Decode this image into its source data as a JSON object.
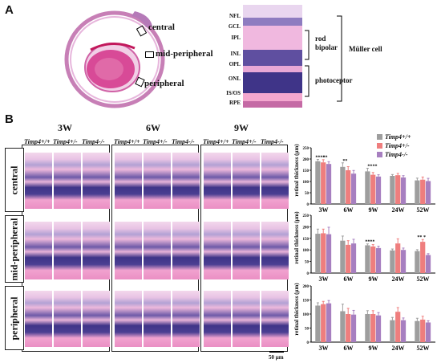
{
  "panel_a": {
    "letter": "A",
    "region_labels": [
      "central",
      "mid-peripheral",
      "peripheral"
    ],
    "layers": [
      "NFL",
      "GCL",
      "IPL",
      "INL",
      "OPL",
      "ONL",
      "IS/OS",
      "RPE"
    ],
    "cell_labels": {
      "rod": "rod",
      "bipolar": "bipolar",
      "photoceptor": "photoceptor",
      "muller": "Müller cell"
    }
  },
  "panel_b": {
    "letter": "B",
    "groups": [
      "3W",
      "6W",
      "9W"
    ],
    "genotypes": [
      "Timp4+/+",
      "Timp4+/-",
      "Timp4-/-"
    ],
    "rows": [
      "central",
      "mid-peripheral",
      "peripheral"
    ],
    "scale_bar": "50 μm"
  },
  "colors": {
    "wt": "#9e9e9e",
    "het": "#ef7e7e",
    "ko": "#a77fc0",
    "he_pink": "#ee9fd0",
    "nuclei": "#4a3f8f"
  },
  "chart_data": [
    {
      "type": "bar",
      "row": "central",
      "categories": [
        "3W",
        "6W",
        "9W",
        "24W",
        "52W"
      ],
      "series": [
        {
          "name": "Timp4+/+",
          "values": [
            190,
            165,
            145,
            125,
            105
          ]
        },
        {
          "name": "Timp4+/-",
          "values": [
            185,
            150,
            130,
            128,
            108
          ]
        },
        {
          "name": "Timp4-/-",
          "values": [
            178,
            135,
            122,
            118,
            102
          ]
        }
      ],
      "errors": [
        [
          8,
          18,
          14,
          6,
          10
        ],
        [
          12,
          16,
          10,
          8,
          12
        ],
        [
          10,
          14,
          8,
          8,
          12
        ]
      ],
      "yticks": [
        0,
        50,
        100,
        150,
        200,
        250
      ],
      "ylim": [
        0,
        250
      ],
      "ylabel": "retinal thickness (μm)",
      "annotations": [
        {
          "category": "3W",
          "text": "****"
        },
        {
          "category": "3W",
          "text": "**"
        },
        {
          "category": "6W",
          "text": "**"
        },
        {
          "category": "9W",
          "text": "**"
        },
        {
          "category": "9W",
          "text": "**"
        }
      ]
    },
    {
      "type": "bar",
      "row": "mid-peripheral",
      "categories": [
        "3W",
        "6W",
        "9W",
        "24W",
        "52W"
      ],
      "series": [
        {
          "name": "Timp4+/+",
          "values": [
            170,
            140,
            120,
            98,
            95
          ]
        },
        {
          "name": "Timp4+/-",
          "values": [
            172,
            122,
            115,
            128,
            135
          ]
        },
        {
          "name": "Timp4-/-",
          "values": [
            168,
            128,
            108,
            100,
            78
          ]
        }
      ],
      "errors": [
        [
          20,
          20,
          6,
          6,
          6
        ],
        [
          18,
          18,
          8,
          20,
          10
        ],
        [
          30,
          18,
          8,
          8,
          6
        ]
      ],
      "yticks": [
        0,
        50,
        100,
        150,
        200,
        250
      ],
      "ylim": [
        0,
        250
      ],
      "ylabel": "retinal thickness (μm)",
      "annotations": [
        {
          "category": "9W",
          "text": "****"
        },
        {
          "category": "52W",
          "text": "**"
        },
        {
          "category": "52W",
          "text": "*"
        }
      ]
    },
    {
      "type": "bar",
      "row": "peripheral",
      "categories": [
        "3W",
        "6W",
        "9W",
        "24W",
        "52W"
      ],
      "series": [
        {
          "name": "Timp4+/+",
          "values": [
            130,
            110,
            100,
            78,
            75
          ]
        },
        {
          "name": "Timp4+/-",
          "values": [
            135,
            100,
            100,
            108,
            80
          ]
        },
        {
          "name": "Timp4-/-",
          "values": [
            138,
            98,
            95,
            78,
            70
          ]
        }
      ],
      "errors": [
        [
          10,
          25,
          12,
          10,
          10
        ],
        [
          10,
          20,
          12,
          15,
          12
        ],
        [
          10,
          15,
          10,
          8,
          6
        ]
      ],
      "yticks": [
        0,
        50,
        100,
        150,
        200
      ],
      "ylim": [
        0,
        200
      ],
      "ylabel": "retinal thickness (μm)",
      "annotations": []
    }
  ]
}
